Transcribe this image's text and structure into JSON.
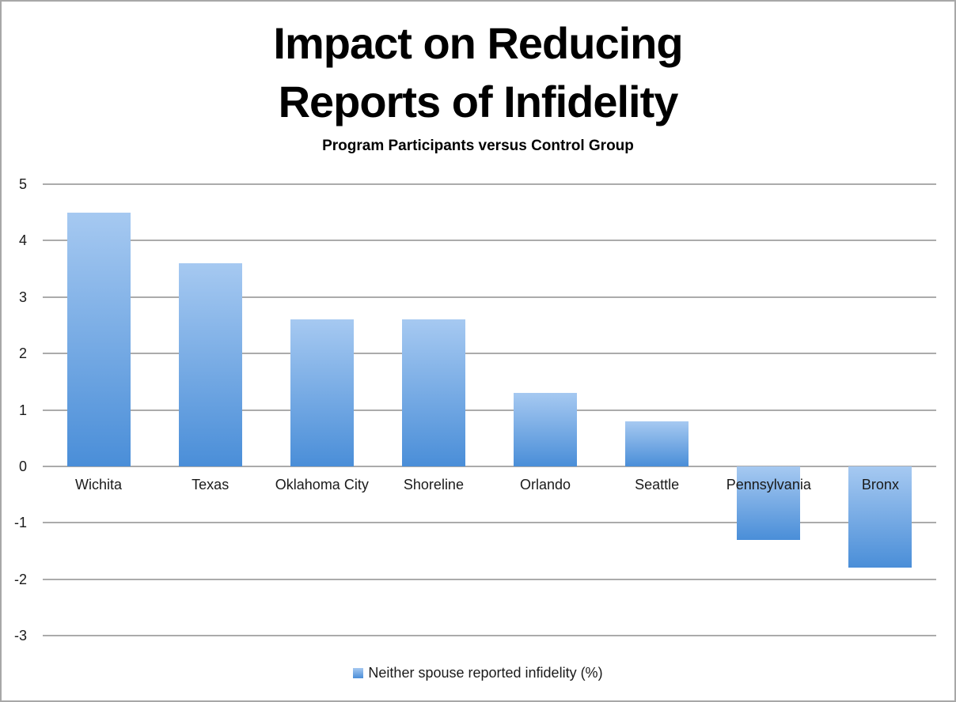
{
  "chart_data": {
    "type": "bar",
    "title_lines": [
      "Impact on Reducing",
      "Reports of Infidelity"
    ],
    "subtitle": "Program Participants versus Control Group",
    "categories": [
      "Wichita",
      "Texas",
      "Oklahoma City",
      "Shoreline",
      "Orlando",
      "Seattle",
      "Pennsylvania",
      "Bronx"
    ],
    "values": [
      4.5,
      3.6,
      2.6,
      2.6,
      1.3,
      0.8,
      -1.3,
      -1.8
    ],
    "series_name": "Neither spouse reported infidelity (%)",
    "xlabel": "",
    "ylabel": "",
    "ylim": [
      -3,
      5
    ],
    "yticks": [
      5,
      4,
      3,
      2,
      1,
      0,
      -1,
      -2,
      -3
    ],
    "grid": true,
    "legend_position": "bottom",
    "colors": {
      "bar_gradient_top": "#a6c9f1",
      "bar_gradient_bottom": "#4a8ed8",
      "gridline": "#ababab",
      "text": "#1a1a1a",
      "title_text": "#000000",
      "frame_border": "#a8a8a8",
      "background": "#ffffff"
    }
  }
}
